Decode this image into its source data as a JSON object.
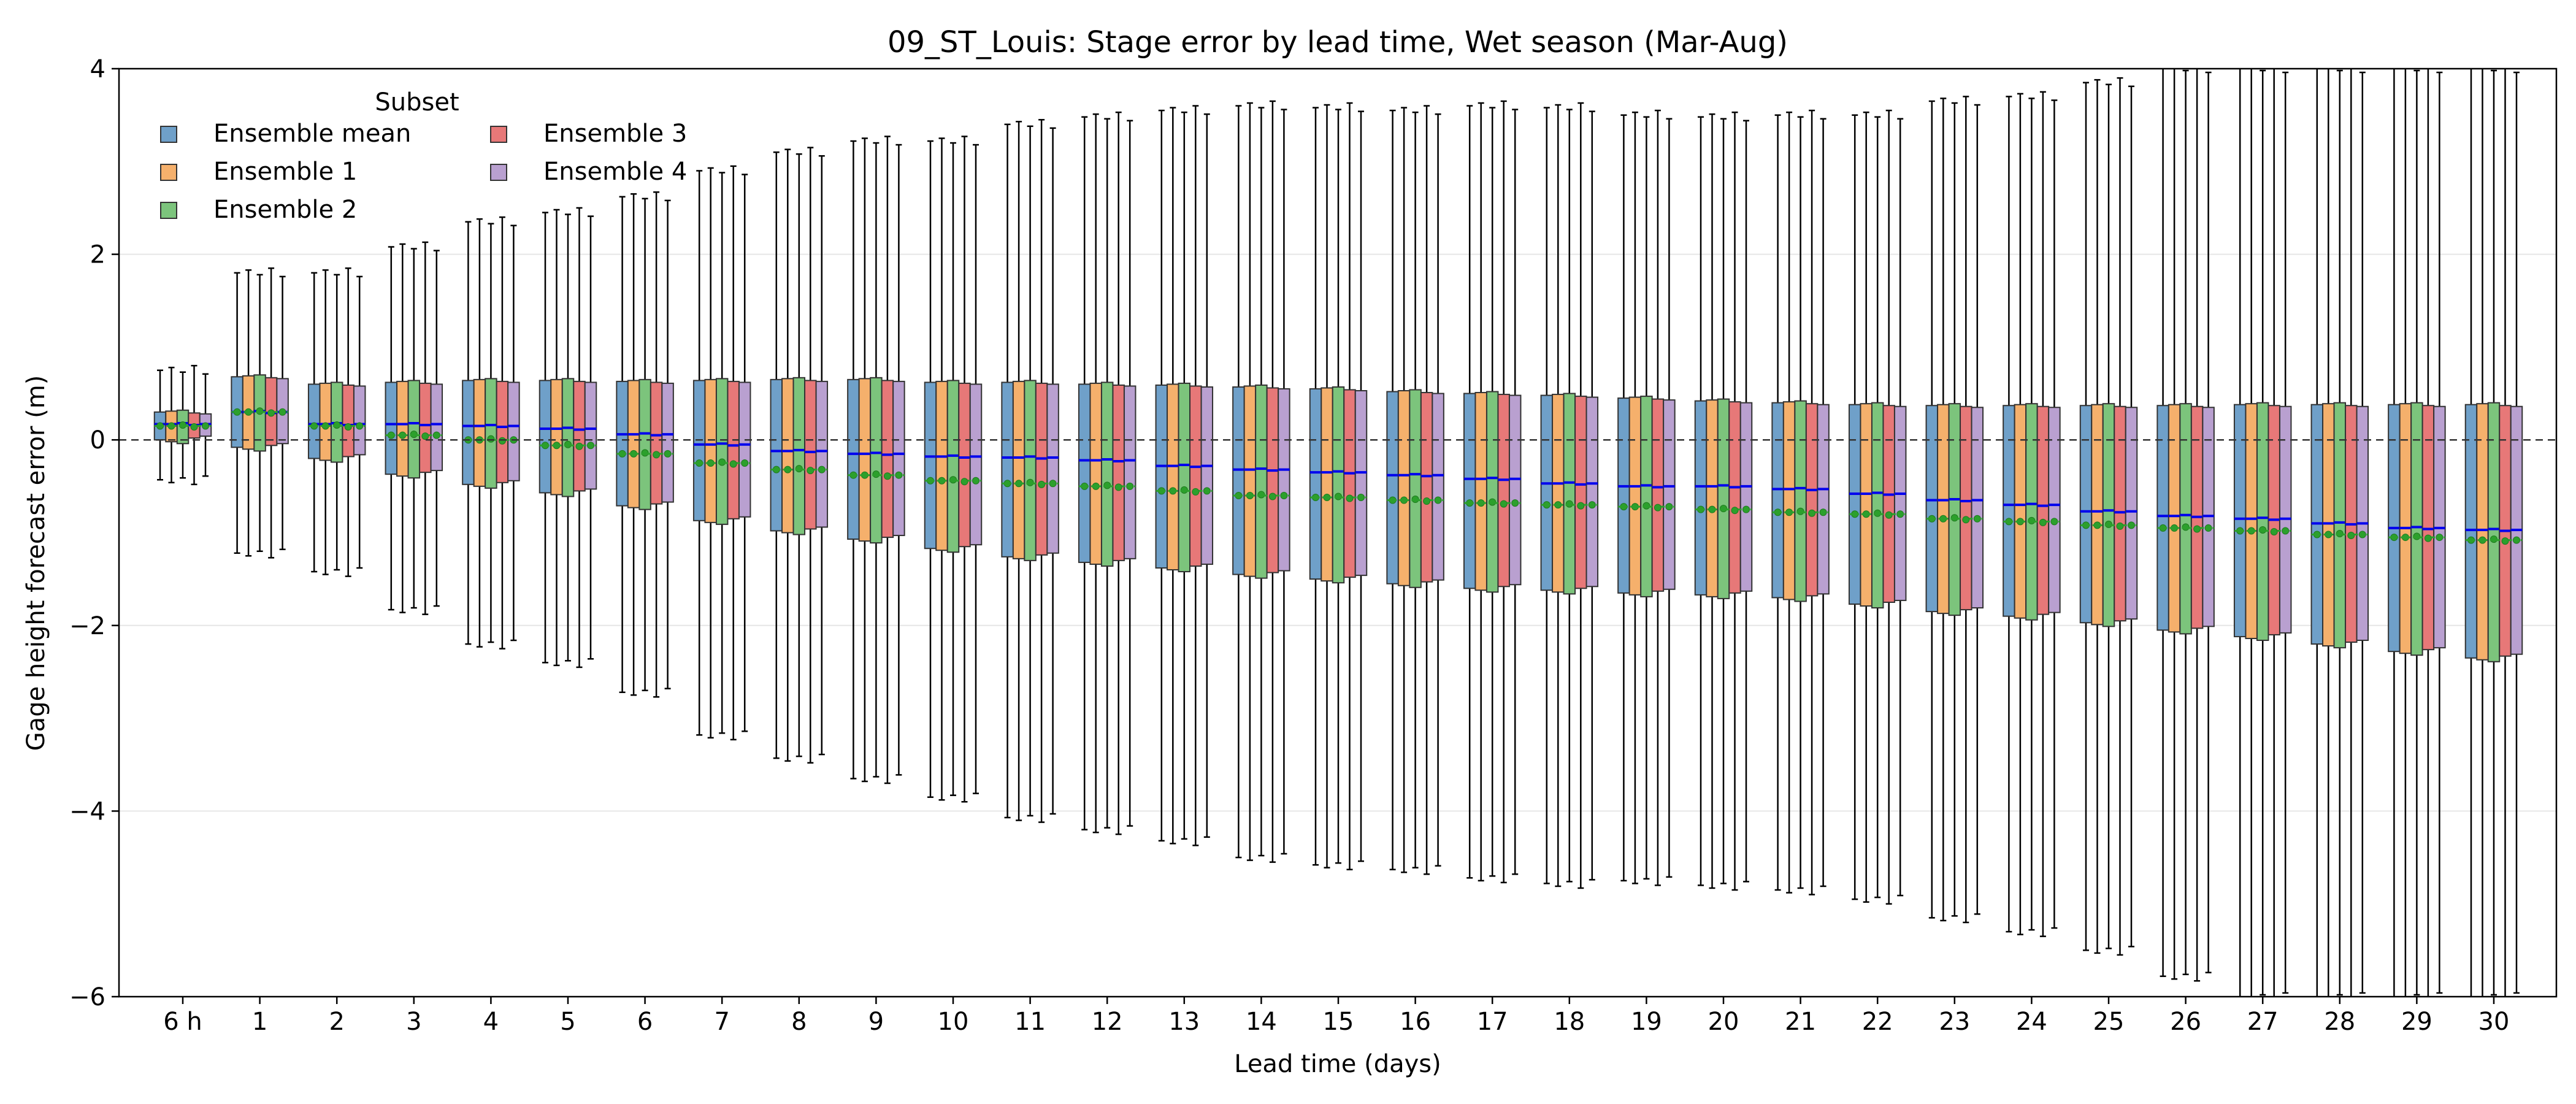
{
  "chart_data": {
    "type": "box",
    "title": "09_ST_Louis: Stage error by lead time, Wet season (Mar-Aug)",
    "xlabel": "Lead time (days)",
    "ylabel": "Gage height forecast error (m)",
    "ylim": [
      -6,
      4
    ],
    "yticks": [
      "4",
      "2",
      "0",
      "−2",
      "−4",
      "−6"
    ],
    "ytick_values": [
      4,
      2,
      0,
      -2,
      -4,
      -6
    ],
    "grid": "y",
    "zero_line": "dashed",
    "legend": {
      "title": "Subset",
      "placement": "top-left",
      "columns": 2
    },
    "categories": [
      "6 h",
      "1",
      "2",
      "3",
      "4",
      "5",
      "6",
      "7",
      "8",
      "9",
      "10",
      "11",
      "12",
      "13",
      "14",
      "15",
      "16",
      "17",
      "18",
      "19",
      "20",
      "21",
      "22",
      "23",
      "24",
      "25",
      "26",
      "27",
      "28",
      "29",
      "30"
    ],
    "series": [
      {
        "name": "Ensemble mean",
        "color": "#6fa0c9"
      },
      {
        "name": "Ensemble 1",
        "color": "#f5b06c"
      },
      {
        "name": "Ensemble 2",
        "color": "#7cc47c"
      },
      {
        "name": "Ensemble 3",
        "color": "#e77878"
      },
      {
        "name": "Ensemble 4",
        "color": "#b9a0d0"
      }
    ],
    "median_color": "#0000ee",
    "mean_marker_color": "#2ca02c",
    "summary_by_lead": {
      "q3": [
        0.3,
        0.68,
        0.6,
        0.62,
        0.64,
        0.64,
        0.63,
        0.64,
        0.65,
        0.65,
        0.62,
        0.62,
        0.6,
        0.59,
        0.57,
        0.55,
        0.52,
        0.5,
        0.48,
        0.45,
        0.42,
        0.4,
        0.38,
        0.37,
        0.37,
        0.37,
        0.37,
        0.38,
        0.38,
        0.38,
        0.38
      ],
      "q1": [
        0.0,
        -0.08,
        -0.2,
        -0.37,
        -0.48,
        -0.57,
        -0.71,
        -0.87,
        -0.98,
        -1.07,
        -1.17,
        -1.26,
        -1.32,
        -1.38,
        -1.45,
        -1.5,
        -1.55,
        -1.6,
        -1.62,
        -1.65,
        -1.67,
        -1.7,
        -1.77,
        -1.85,
        -1.9,
        -1.97,
        -2.05,
        -2.12,
        -2.2,
        -2.28,
        -2.35
      ],
      "median": [
        0.17,
        0.3,
        0.17,
        0.17,
        0.15,
        0.12,
        0.06,
        -0.05,
        -0.12,
        -0.15,
        -0.18,
        -0.19,
        -0.22,
        -0.28,
        -0.32,
        -0.35,
        -0.38,
        -0.42,
        -0.47,
        -0.5,
        -0.5,
        -0.53,
        -0.58,
        -0.65,
        -0.7,
        -0.77,
        -0.82,
        -0.85,
        -0.9,
        -0.95,
        -0.97
      ],
      "mean": [
        0.15,
        0.3,
        0.15,
        0.05,
        0.0,
        -0.06,
        -0.15,
        -0.25,
        -0.32,
        -0.38,
        -0.44,
        -0.47,
        -0.5,
        -0.55,
        -0.6,
        -0.62,
        -0.65,
        -0.68,
        -0.7,
        -0.72,
        -0.75,
        -0.78,
        -0.8,
        -0.85,
        -0.88,
        -0.92,
        -0.95,
        -0.98,
        -1.02,
        -1.05,
        -1.08
      ],
      "whisker_hi": [
        0.75,
        1.8,
        1.8,
        2.08,
        2.35,
        2.45,
        2.62,
        2.9,
        3.1,
        3.22,
        3.22,
        3.4,
        3.48,
        3.55,
        3.6,
        3.58,
        3.55,
        3.6,
        3.58,
        3.5,
        3.48,
        3.5,
        3.5,
        3.65,
        3.7,
        3.85,
        4.0,
        4.0,
        4.0,
        4.0,
        4.0
      ],
      "whisker_lo": [
        -0.43,
        -1.22,
        -1.42,
        -1.83,
        -2.2,
        -2.4,
        -2.72,
        -3.18,
        -3.43,
        -3.65,
        -3.85,
        -4.07,
        -4.2,
        -4.32,
        -4.5,
        -4.58,
        -4.63,
        -4.72,
        -4.78,
        -4.75,
        -4.8,
        -4.85,
        -4.95,
        -5.15,
        -5.3,
        -5.5,
        -5.78,
        -6.0,
        -6.0,
        -6.0,
        -6.0
      ]
    }
  }
}
